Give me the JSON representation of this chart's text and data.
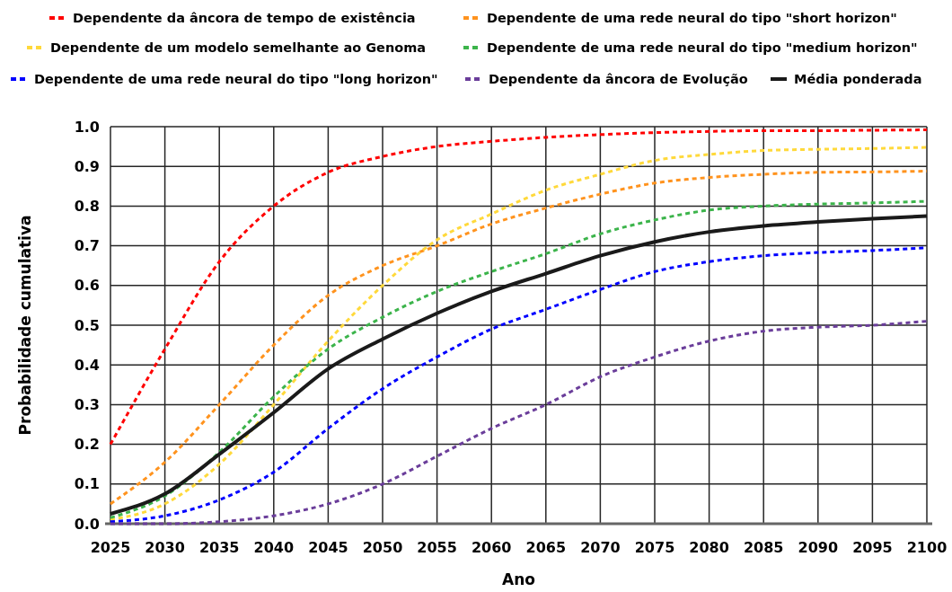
{
  "chart_data": {
    "type": "line",
    "xlabel": "Ano",
    "ylabel": "Probabilidade cumulativa",
    "x": [
      2025,
      2030,
      2035,
      2040,
      2045,
      2050,
      2055,
      2060,
      2065,
      2070,
      2075,
      2080,
      2085,
      2090,
      2095,
      2100
    ],
    "xlim": [
      2025,
      2100
    ],
    "xticks": [
      2025,
      2030,
      2035,
      2040,
      2045,
      2050,
      2055,
      2060,
      2065,
      2070,
      2075,
      2080,
      2085,
      2090,
      2095,
      2100
    ],
    "ylim": [
      0,
      1
    ],
    "yticks": [
      {
        "value": 0,
        "label": "0.0"
      },
      {
        "value": 0.1,
        "label": "0.1"
      },
      {
        "value": 0.2,
        "label": "0.2"
      },
      {
        "value": 0.3,
        "label": "0.3"
      },
      {
        "value": 0.4,
        "label": "0.4"
      },
      {
        "value": 0.5,
        "label": "0.5"
      },
      {
        "value": 0.6,
        "label": "0.6"
      },
      {
        "value": 0.7,
        "label": "0.7"
      },
      {
        "value": 0.8,
        "label": "0.8"
      },
      {
        "value": 0.9,
        "label": "0.9"
      },
      {
        "value": 1,
        "label": "1.0"
      }
    ],
    "grid": true,
    "legend": "top",
    "marker": "none",
    "series": [
      {
        "name": "Dependente da âncora de tempo de existência",
        "color": "#ff0000",
        "line_style": "dashed",
        "values": [
          0.2,
          0.44,
          0.66,
          0.8,
          0.885,
          0.925,
          0.95,
          0.963,
          0.973,
          0.98,
          0.985,
          0.988,
          0.99,
          0.99,
          0.991,
          0.992
        ]
      },
      {
        "name": "Dependente de uma rede neural do tipo \"short horizon\"",
        "color": "#ff931e",
        "line_style": "dashed",
        "values": [
          0.05,
          0.155,
          0.3,
          0.45,
          0.575,
          0.65,
          0.7,
          0.755,
          0.795,
          0.83,
          0.858,
          0.872,
          0.88,
          0.885,
          0.886,
          0.888
        ]
      },
      {
        "name": "Dependente de um modelo semelhante ao Genoma",
        "color": "#ffd93b",
        "line_style": "dashed",
        "values": [
          0.01,
          0.05,
          0.15,
          0.3,
          0.46,
          0.6,
          0.715,
          0.78,
          0.84,
          0.88,
          0.915,
          0.93,
          0.94,
          0.943,
          0.945,
          0.948
        ]
      },
      {
        "name": "Dependente de uma rede neural do tipo \"medium horizon\"",
        "color": "#3cb44b",
        "line_style": "dashed",
        "values": [
          0.015,
          0.07,
          0.18,
          0.32,
          0.44,
          0.52,
          0.585,
          0.635,
          0.68,
          0.73,
          0.765,
          0.79,
          0.8,
          0.805,
          0.808,
          0.812
        ]
      },
      {
        "name": "Dependente de uma rede neural do tipo \"long horizon\"",
        "color": "#0000ff",
        "line_style": "dashed",
        "values": [
          0.005,
          0.02,
          0.06,
          0.13,
          0.24,
          0.34,
          0.42,
          0.49,
          0.54,
          0.59,
          0.635,
          0.66,
          0.675,
          0.683,
          0.688,
          0.695
        ]
      },
      {
        "name": "Dependente da âncora de Evolução",
        "color": "#6a3d9a",
        "line_style": "dashed",
        "values": [
          0,
          0,
          0.005,
          0.02,
          0.05,
          0.1,
          0.17,
          0.24,
          0.3,
          0.37,
          0.42,
          0.46,
          0.485,
          0.495,
          0.5,
          0.51
        ]
      },
      {
        "name": "Média ponderada",
        "color": "#1a1a1a",
        "line_style": "solid",
        "values": [
          0.025,
          0.075,
          0.175,
          0.28,
          0.39,
          0.465,
          0.53,
          0.585,
          0.63,
          0.675,
          0.71,
          0.735,
          0.75,
          0.76,
          0.768,
          0.775
        ]
      }
    ]
  }
}
